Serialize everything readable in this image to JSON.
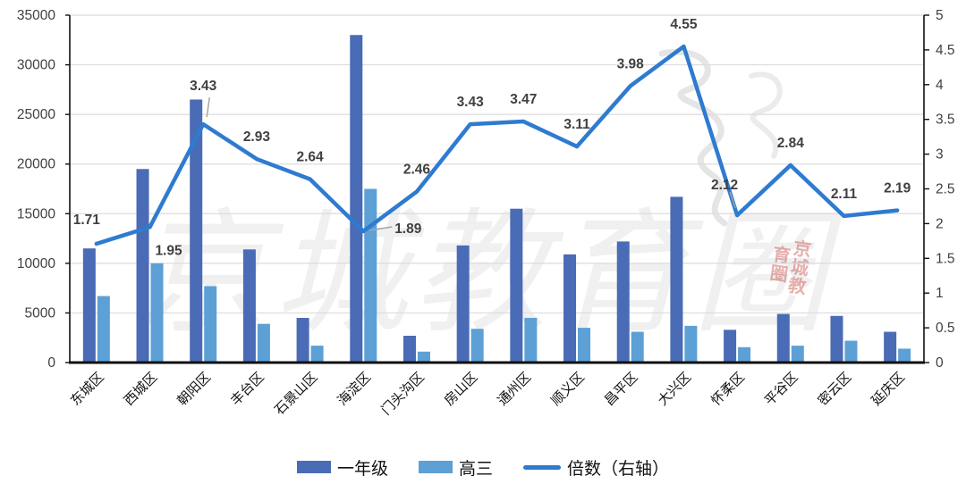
{
  "watermark": {
    "text": "京城教育圈",
    "seal_text": "京城教育圈"
  },
  "legend": {
    "items": [
      {
        "label": "一年级",
        "swatch": "bar"
      },
      {
        "label": "高三",
        "swatch": "bar"
      },
      {
        "label": "倍数（右轴）",
        "swatch": "line"
      }
    ]
  },
  "chart_data": {
    "type": "bar",
    "subtype": "combo-bar-line-dual-axis",
    "title": "",
    "xlabel": "",
    "ylabel": "",
    "grid": true,
    "legend_position": "bottom",
    "categories": [
      "东城区",
      "西城区",
      "朝阳区",
      "丰台区",
      "石景山区",
      "海淀区",
      "门头沟区",
      "房山区",
      "通州区",
      "顺义区",
      "昌平区",
      "大兴区",
      "怀柔区",
      "平谷区",
      "密云区",
      "延庆区"
    ],
    "series": [
      {
        "name": "一年级",
        "type": "bar",
        "axis": "left",
        "color": "#4A6BB5",
        "values": [
          11500,
          19500,
          26500,
          11400,
          4500,
          33000,
          2700,
          11800,
          15500,
          10900,
          12200,
          16700,
          3300,
          4900,
          4700,
          3100
        ]
      },
      {
        "name": "高三",
        "type": "bar",
        "axis": "left",
        "color": "#5CA0D6",
        "values": [
          6700,
          10000,
          7700,
          3900,
          1700,
          17500,
          1100,
          3400,
          4500,
          3500,
          3100,
          3700,
          1550,
          1700,
          2200,
          1400
        ]
      },
      {
        "name": "倍数（右轴）",
        "type": "line",
        "axis": "right",
        "color": "#2E7BD0",
        "values": [
          1.71,
          1.95,
          3.43,
          2.93,
          2.64,
          1.89,
          2.46,
          3.43,
          3.47,
          3.11,
          3.98,
          4.55,
          2.12,
          2.84,
          2.11,
          2.19
        ],
        "labels": [
          "1.71",
          "1.95",
          "3.43",
          "2.93",
          "2.64",
          "1.89",
          "2.46",
          "3.43",
          "3.47",
          "3.11",
          "3.98",
          "4.55",
          "2.12",
          "2.84",
          "2.11",
          "2.19"
        ]
      }
    ],
    "left_axis": {
      "min": 0,
      "max": 35000,
      "step": 5000,
      "tick_labels": [
        "0",
        "5000",
        "10000",
        "15000",
        "20000",
        "25000",
        "30000",
        "35000"
      ]
    },
    "right_axis": {
      "min": 0,
      "max": 5,
      "step": 0.5,
      "tick_labels": [
        "0",
        "0.5",
        "1",
        "1.5",
        "2",
        "2.5",
        "3",
        "3.5",
        "4",
        "4.5",
        "5"
      ]
    }
  }
}
